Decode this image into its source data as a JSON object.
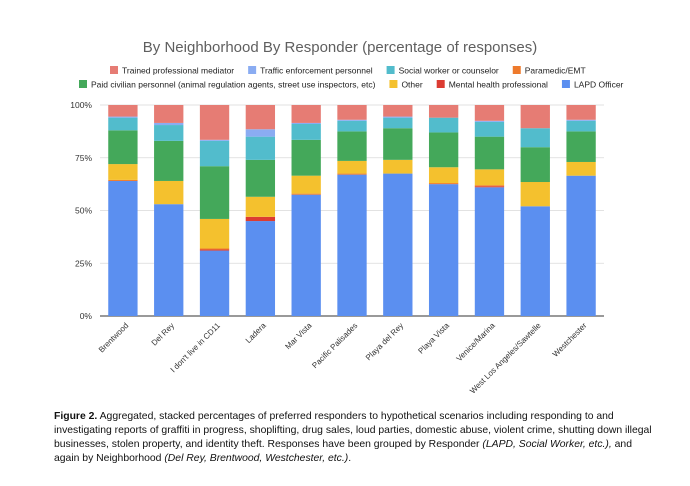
{
  "chart_data": {
    "type": "bar",
    "stacked": true,
    "percent": true,
    "title": "By Neighborhood By Responder (percentage of responses)",
    "categories": [
      "Brentwood",
      "Del Rey",
      "I don't live in CD11",
      "Ladera",
      "Mar Vista",
      "Pacific Palisades",
      "Playa del Rey",
      "Playa Vista",
      "Venice/Marina",
      "West Los Angeles/Sawtelle",
      "Westchester"
    ],
    "series": [
      {
        "name": "LAPD Officer",
        "color": "#5b8ff0",
        "values": [
          64,
          53,
          31,
          45,
          57.5,
          67,
          67.5,
          62.5,
          61,
          52,
          66.5
        ]
      },
      {
        "name": "Mental health professional",
        "color": "#dc3c32",
        "values": [
          0,
          0,
          0.5,
          2,
          0,
          0,
          0,
          0,
          0.5,
          0,
          0
        ]
      },
      {
        "name": "Paramedic/EMT",
        "color": "#ee7a2c",
        "values": [
          0.5,
          0,
          0.5,
          0,
          0.5,
          0.5,
          0,
          0.5,
          0.5,
          0,
          0
        ]
      },
      {
        "name": "Other",
        "color": "#f4c12e",
        "values": [
          7.5,
          11,
          14,
          9.5,
          8.5,
          6,
          6.5,
          7.5,
          7.5,
          11.5,
          6.5
        ]
      },
      {
        "name": "Paid civilian personnel (animal regulation agents, street use inspectors, etc)",
        "color": "#44a85a",
        "values": [
          16,
          19,
          25,
          17.5,
          17,
          14,
          15,
          16.5,
          15.5,
          16.5,
          14.5
        ]
      },
      {
        "name": "Social worker or counselor",
        "color": "#52bccc",
        "values": [
          6,
          7.5,
          12,
          11,
          7.5,
          5,
          5,
          7,
          7,
          9,
          5
        ]
      },
      {
        "name": "Traffic enforcement personnel",
        "color": "#8aacf2",
        "values": [
          0.5,
          1,
          0.5,
          3.5,
          0.5,
          0.5,
          0.5,
          0,
          0.5,
          0,
          0.5
        ]
      },
      {
        "name": "Trained professional mediator",
        "color": "#e67c74",
        "values": [
          5.5,
          8.5,
          16.5,
          11.5,
          8.5,
          7,
          5.5,
          6,
          7.5,
          11,
          7
        ]
      }
    ],
    "y_ticks": [
      "0%",
      "25%",
      "50%",
      "75%",
      "100%"
    ],
    "ylim": [
      0,
      100
    ],
    "grid": true,
    "legend_position": "top"
  },
  "caption": {
    "label": "Figure 2.",
    "text_1": " Aggregated, stacked percentages of preferred responders to hypothetical scenarios including responding to and investigating reports of graffiti in progress, shoplifting, drug sales, loud parties, domestic abuse, violent crime, shutting down illegal businesses, stolen property, and identity theft.  Responses have been grouped by Responder ",
    "italic_1": "(LAPD, Social Worker, etc.),",
    "text_2": " and again by Neighborhood ",
    "italic_2": "(Del Rey, Brentwood, Westchester, etc.)",
    "text_3": "."
  }
}
